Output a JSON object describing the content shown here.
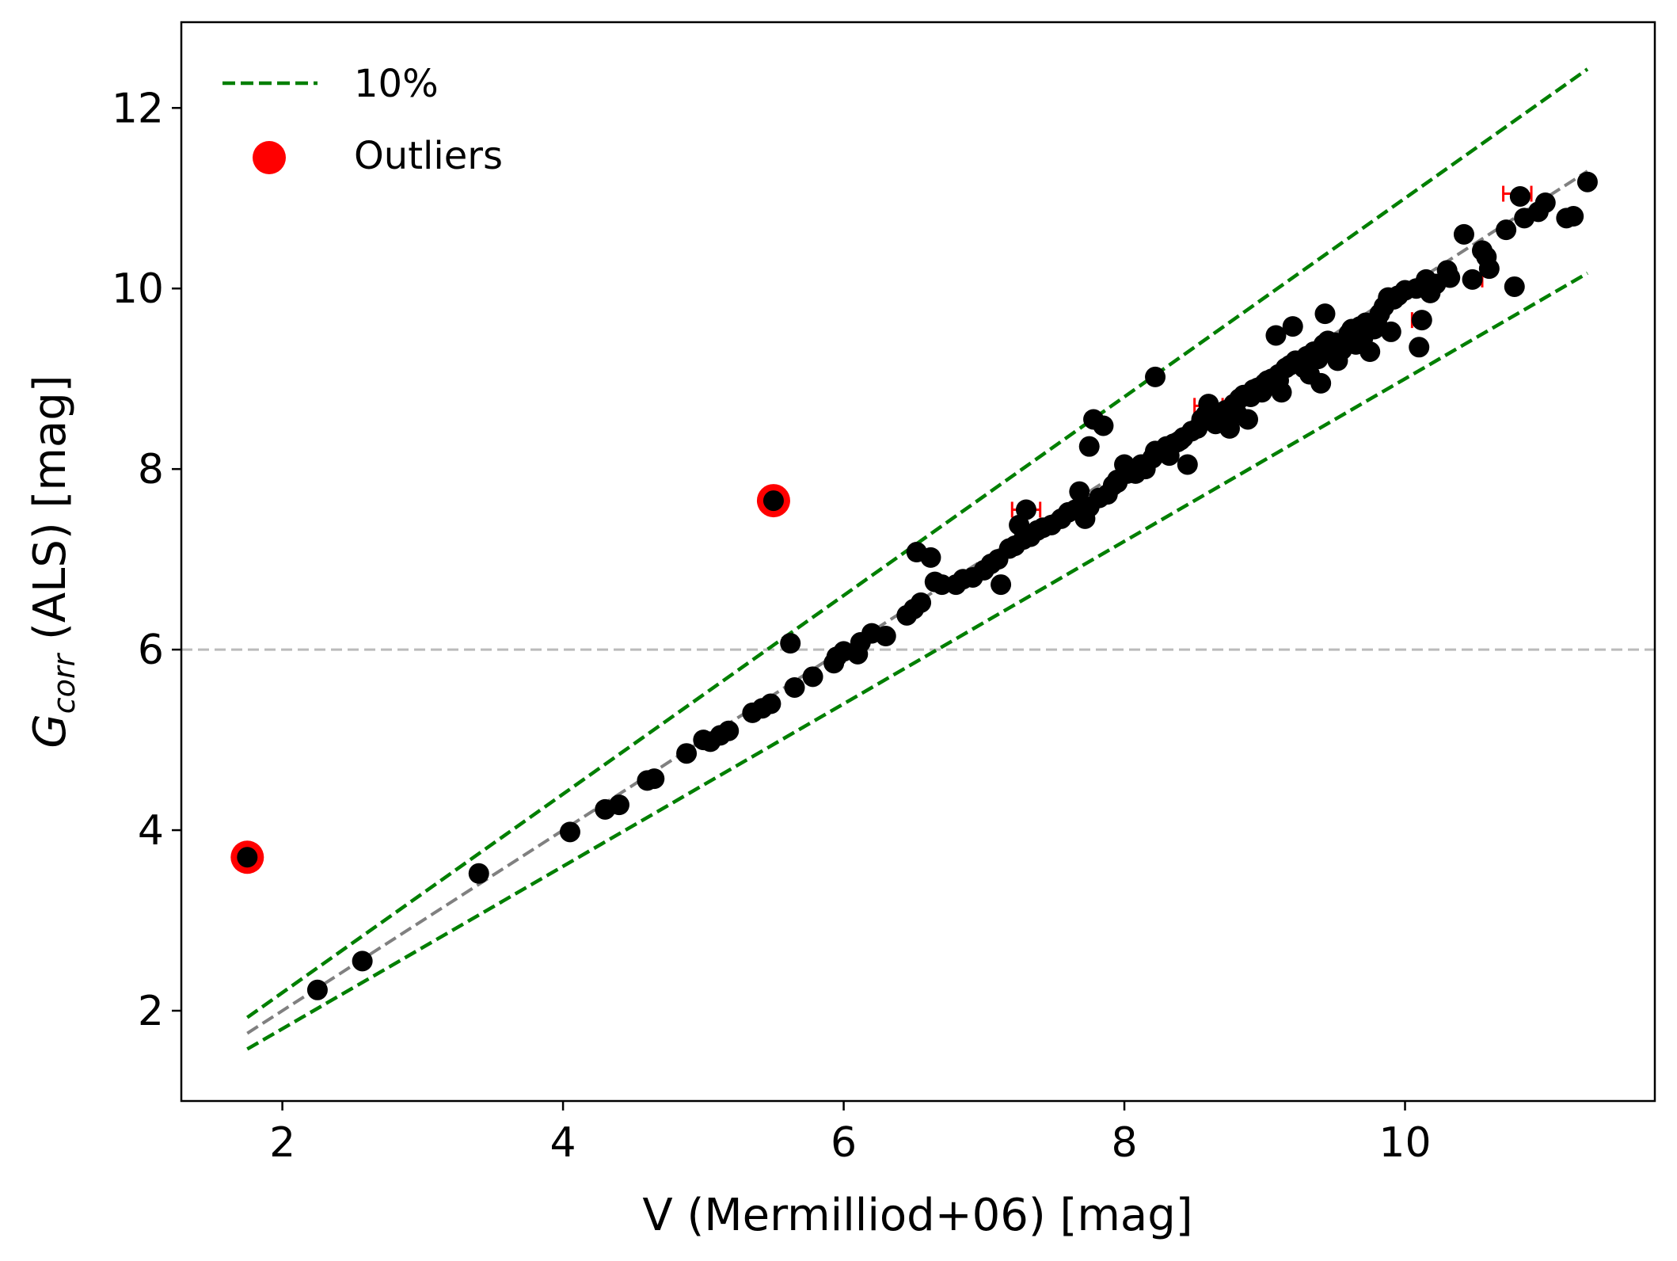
{
  "chart_data": {
    "type": "scatter",
    "xlabel": "V (Mermilliod+06) [mag]",
    "ylabel_main": "G",
    "ylabel_sub": "corr",
    "ylabel_rest": " (ALS) [mag]",
    "xlim": [
      1.28,
      11.78
    ],
    "ylim": [
      1.0,
      12.95
    ],
    "xticks": [
      2,
      4,
      6,
      8,
      10
    ],
    "yticks": [
      2,
      4,
      6,
      8,
      10,
      12
    ],
    "hline": {
      "y": 6,
      "color": "#bbbbbb",
      "style": "dashed"
    },
    "one_to_one": {
      "name": "1:1",
      "x_range": [
        1.75,
        11.3
      ],
      "color": "#808080",
      "style": "dashed"
    },
    "ten_percent": {
      "name": "10%",
      "factor_upper": 1.1,
      "factor_lower": 0.9,
      "x_range": [
        1.75,
        11.3
      ],
      "color": "#007f00",
      "style": "dashed"
    },
    "legend": [
      {
        "label": "10%",
        "kind": "line",
        "color": "#007f00"
      },
      {
        "label": "Outliers",
        "kind": "marker",
        "color": "#ff0000"
      }
    ],
    "colors": {
      "points": "#000000",
      "outliers": "#ff0000",
      "errorbar": "#ff0000"
    },
    "outliers": [
      [
        1.75,
        3.7
      ],
      [
        5.5,
        7.65
      ]
    ],
    "errorbars": [
      {
        "x": 7.3,
        "y": 7.55,
        "xerr": 0.1
      },
      {
        "x": 8.6,
        "y": 8.7,
        "xerr": 0.1
      },
      {
        "x": 10.1,
        "y": 9.65,
        "xerr": 0.05
      },
      {
        "x": 10.5,
        "y": 10.1,
        "xerr": 0.05
      },
      {
        "x": 10.8,
        "y": 11.05,
        "xerr": 0.1
      }
    ],
    "points": [
      [
        1.75,
        3.7
      ],
      [
        2.25,
        2.23
      ],
      [
        2.57,
        2.55
      ],
      [
        3.4,
        3.52
      ],
      [
        4.05,
        3.98
      ],
      [
        4.3,
        4.23
      ],
      [
        4.4,
        4.28
      ],
      [
        4.6,
        4.55
      ],
      [
        4.65,
        4.57
      ],
      [
        4.88,
        4.85
      ],
      [
        5.0,
        5.0
      ],
      [
        5.05,
        4.98
      ],
      [
        5.12,
        5.05
      ],
      [
        5.18,
        5.1
      ],
      [
        5.35,
        5.3
      ],
      [
        5.42,
        5.35
      ],
      [
        5.48,
        5.4
      ],
      [
        5.5,
        7.65
      ],
      [
        5.62,
        6.07
      ],
      [
        5.65,
        5.58
      ],
      [
        5.78,
        5.7
      ],
      [
        5.93,
        5.85
      ],
      [
        5.95,
        5.92
      ],
      [
        6.0,
        5.98
      ],
      [
        6.1,
        5.95
      ],
      [
        6.12,
        6.08
      ],
      [
        6.2,
        6.18
      ],
      [
        6.3,
        6.15
      ],
      [
        6.45,
        6.38
      ],
      [
        6.5,
        6.45
      ],
      [
        6.52,
        7.08
      ],
      [
        6.55,
        6.52
      ],
      [
        6.62,
        7.02
      ],
      [
        6.65,
        6.75
      ],
      [
        6.7,
        6.72
      ],
      [
        6.8,
        6.72
      ],
      [
        6.85,
        6.78
      ],
      [
        6.92,
        6.8
      ],
      [
        7.0,
        6.88
      ],
      [
        7.05,
        6.95
      ],
      [
        7.1,
        7.0
      ],
      [
        7.12,
        6.72
      ],
      [
        7.18,
        7.12
      ],
      [
        7.22,
        7.15
      ],
      [
        7.25,
        7.38
      ],
      [
        7.28,
        7.22
      ],
      [
        7.3,
        7.55
      ],
      [
        7.33,
        7.25
      ],
      [
        7.38,
        7.32
      ],
      [
        7.42,
        7.35
      ],
      [
        7.48,
        7.38
      ],
      [
        7.55,
        7.45
      ],
      [
        7.6,
        7.52
      ],
      [
        7.68,
        7.75
      ],
      [
        7.72,
        7.45
      ],
      [
        7.75,
        7.58
      ],
      [
        7.78,
        8.55
      ],
      [
        7.82,
        7.68
      ],
      [
        7.85,
        8.48
      ],
      [
        7.88,
        7.72
      ],
      [
        7.92,
        7.82
      ],
      [
        7.95,
        7.85
      ],
      [
        7.75,
        8.25
      ],
      [
        8.0,
        8.05
      ],
      [
        8.02,
        7.95
      ],
      [
        8.08,
        7.95
      ],
      [
        8.12,
        8.05
      ],
      [
        8.15,
        8.0
      ],
      [
        8.2,
        8.12
      ],
      [
        8.22,
        8.2
      ],
      [
        8.25,
        8.18
      ],
      [
        8.22,
        9.02
      ],
      [
        8.3,
        8.25
      ],
      [
        8.32,
        8.15
      ],
      [
        8.38,
        8.3
      ],
      [
        8.42,
        8.35
      ],
      [
        8.45,
        8.05
      ],
      [
        8.48,
        8.42
      ],
      [
        8.52,
        8.45
      ],
      [
        8.55,
        8.55
      ],
      [
        8.58,
        8.6
      ],
      [
        8.6,
        8.72
      ],
      [
        8.62,
        8.55
      ],
      [
        8.68,
        8.62
      ],
      [
        8.72,
        8.65
      ],
      [
        8.75,
        8.45
      ],
      [
        8.78,
        8.72
      ],
      [
        8.8,
        8.62
      ],
      [
        8.82,
        8.78
      ],
      [
        8.85,
        8.82
      ],
      [
        8.88,
        8.55
      ],
      [
        8.92,
        8.88
      ],
      [
        8.95,
        8.9
      ],
      [
        9.0,
        8.95
      ],
      [
        9.02,
        8.98
      ],
      [
        9.05,
        9.0
      ],
      [
        9.08,
        9.48
      ],
      [
        9.1,
        9.05
      ],
      [
        9.12,
        8.85
      ],
      [
        9.15,
        9.12
      ],
      [
        9.18,
        9.15
      ],
      [
        9.2,
        9.58
      ],
      [
        9.22,
        9.2
      ],
      [
        9.25,
        9.18
      ],
      [
        9.3,
        9.25
      ],
      [
        9.32,
        9.05
      ],
      [
        9.35,
        9.3
      ],
      [
        9.38,
        9.22
      ],
      [
        9.4,
        8.95
      ],
      [
        9.42,
        9.38
      ],
      [
        9.45,
        9.42
      ],
      [
        9.43,
        9.72
      ],
      [
        9.5,
        9.4
      ],
      [
        9.52,
        9.2
      ],
      [
        9.55,
        9.32
      ],
      [
        9.6,
        9.5
      ],
      [
        9.62,
        9.55
      ],
      [
        9.65,
        9.38
      ],
      [
        9.7,
        9.45
      ],
      [
        9.72,
        9.62
      ],
      [
        9.75,
        9.3
      ],
      [
        9.78,
        9.55
      ],
      [
        9.82,
        9.72
      ],
      [
        9.85,
        9.8
      ],
      [
        9.88,
        9.9
      ],
      [
        9.9,
        9.52
      ],
      [
        9.92,
        9.88
      ],
      [
        9.95,
        9.92
      ],
      [
        10.0,
        9.98
      ],
      [
        10.08,
        10.0
      ],
      [
        10.1,
        9.35
      ],
      [
        10.12,
        9.65
      ],
      [
        10.15,
        10.1
      ],
      [
        10.18,
        9.95
      ],
      [
        10.22,
        10.05
      ],
      [
        10.3,
        10.2
      ],
      [
        10.32,
        10.12
      ],
      [
        10.42,
        10.6
      ],
      [
        10.48,
        10.1
      ],
      [
        10.55,
        10.42
      ],
      [
        10.58,
        10.35
      ],
      [
        10.6,
        10.22
      ],
      [
        10.72,
        10.65
      ],
      [
        10.78,
        10.02
      ],
      [
        10.82,
        11.02
      ],
      [
        10.85,
        10.78
      ],
      [
        10.95,
        10.85
      ],
      [
        11.0,
        10.95
      ],
      [
        11.15,
        10.78
      ],
      [
        11.2,
        10.8
      ],
      [
        11.3,
        11.18
      ],
      [
        8.3,
        8.2
      ],
      [
        8.4,
        8.32
      ],
      [
        8.7,
        8.6
      ],
      [
        8.9,
        8.8
      ],
      [
        9.1,
        8.98
      ],
      [
        9.28,
        9.12
      ],
      [
        9.45,
        9.3
      ],
      [
        7.65,
        7.55
      ],
      [
        7.95,
        7.88
      ],
      [
        8.05,
        8.0
      ],
      [
        8.35,
        8.28
      ],
      [
        8.65,
        8.5
      ],
      [
        8.98,
        8.85
      ],
      [
        9.6,
        9.45
      ],
      [
        9.68,
        9.58
      ],
      [
        9.8,
        9.65
      ]
    ]
  }
}
